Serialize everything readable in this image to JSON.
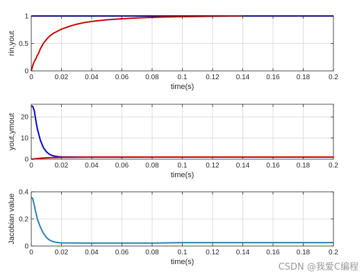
{
  "chart_data": [
    {
      "type": "line",
      "xlabel": "time(s)",
      "ylabel": "rin,yout",
      "xlim": [
        0,
        0.2
      ],
      "ylim": [
        0,
        1
      ],
      "xticks": [
        0,
        0.02,
        0.04,
        0.06,
        0.08,
        0.1,
        0.12,
        0.14,
        0.16,
        0.18,
        0.2
      ],
      "xtick_labels": [
        "0",
        "0.02",
        "0.04",
        "0.06",
        "0.08",
        "0.1",
        "0.12",
        "0.14",
        "0.16",
        "0.18",
        "0.2"
      ],
      "yticks": [
        0,
        0.5,
        1
      ],
      "ytick_labels": [
        "0",
        "0.5",
        "1"
      ],
      "grid": true,
      "series": [
        {
          "color": "#0000cc",
          "x": [
            0,
            0.2
          ],
          "y": [
            1,
            1
          ]
        },
        {
          "color": "#cc0000",
          "x": [
            0,
            0.001,
            0.002,
            0.003,
            0.004,
            0.005,
            0.006,
            0.008,
            0.01,
            0.012,
            0.015,
            0.02,
            0.025,
            0.03,
            0.035,
            0.04,
            0.05,
            0.06,
            0.07,
            0.08,
            0.09,
            0.1,
            0.12,
            0.14
          ],
          "y": [
            0,
            0.1,
            0.17,
            0.22,
            0.28,
            0.33,
            0.4,
            0.5,
            0.57,
            0.63,
            0.69,
            0.76,
            0.81,
            0.85,
            0.88,
            0.9,
            0.93,
            0.95,
            0.965,
            0.975,
            0.982,
            0.988,
            0.995,
            1.0
          ]
        }
      ]
    },
    {
      "type": "line",
      "xlabel": "time(s)",
      "ylabel": "yout,ymout",
      "xlim": [
        0,
        0.2
      ],
      "ylim": [
        0,
        26
      ],
      "xticks": [
        0,
        0.02,
        0.04,
        0.06,
        0.08,
        0.1,
        0.12,
        0.14,
        0.16,
        0.18,
        0.2
      ],
      "xtick_labels": [
        "0",
        "0.02",
        "0.04",
        "0.06",
        "0.08",
        "0.1",
        "0.12",
        "0.14",
        "0.16",
        "0.18",
        "0.2"
      ],
      "yticks": [
        0,
        10,
        20
      ],
      "ytick_labels": [
        "0",
        "10",
        "20"
      ],
      "grid": true,
      "series": [
        {
          "color": "#0000cc",
          "x": [
            0,
            0.001,
            0.002,
            0.003,
            0.004,
            0.006,
            0.008,
            0.01,
            0.012,
            0.014,
            0.016,
            0.018,
            0.02,
            0.03,
            0.05,
            0.1,
            0.15,
            0.2
          ],
          "y": [
            25,
            25,
            23,
            18.5,
            14.5,
            9,
            5.5,
            3.5,
            2.3,
            1.7,
            1.35,
            1.15,
            1.05,
            1.0,
            1.0,
            1.0,
            1.0,
            1.0
          ]
        },
        {
          "color": "#cc0000",
          "x": [
            0,
            0.004,
            0.008,
            0.012,
            0.016,
            0.02,
            0.03,
            0.05,
            0.1,
            0.15,
            0.2
          ],
          "y": [
            0,
            0.3,
            0.55,
            0.7,
            0.8,
            0.86,
            0.92,
            0.96,
            0.99,
            1.0,
            1.0
          ]
        }
      ]
    },
    {
      "type": "line",
      "xlabel": "time(s)",
      "ylabel": "Jacobian value",
      "xlim": [
        0,
        0.2
      ],
      "ylim": [
        0,
        0.4
      ],
      "xticks": [
        0,
        0.02,
        0.04,
        0.06,
        0.08,
        0.1,
        0.12,
        0.14,
        0.16,
        0.18,
        0.2
      ],
      "xtick_labels": [
        "0",
        "0.02",
        "0.04",
        "0.06",
        "0.08",
        "0.1",
        "0.12",
        "0.14",
        "0.16",
        "0.18",
        "0.2"
      ],
      "yticks": [
        0,
        0.2,
        0.4
      ],
      "ytick_labels": [
        "0",
        "0.2",
        "0.4"
      ],
      "grid": true,
      "series": [
        {
          "color": "#2b7fb0",
          "x": [
            0,
            0.001,
            0.002,
            0.003,
            0.004,
            0.006,
            0.008,
            0.01,
            0.012,
            0.014,
            0.016,
            0.018,
            0.02,
            0.04,
            0.06,
            0.08,
            0.1,
            0.12,
            0.14,
            0.16,
            0.18,
            0.2
          ],
          "y": [
            0.36,
            0.35,
            0.3,
            0.25,
            0.2,
            0.14,
            0.095,
            0.063,
            0.045,
            0.034,
            0.028,
            0.025,
            0.023,
            0.022,
            0.022,
            0.022,
            0.025,
            0.025,
            0.025,
            0.025,
            0.025,
            0.025
          ]
        }
      ]
    }
  ],
  "watermark": "CSDN @我爱C编程"
}
